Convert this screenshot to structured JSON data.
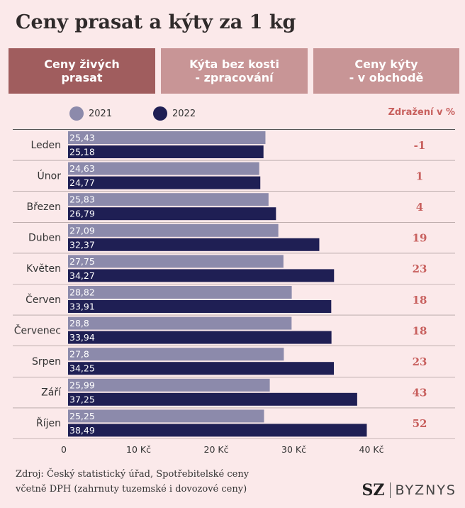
{
  "title": "Ceny prasat a kýty za 1 kg",
  "tabs": [
    {
      "label": "Ceny živých\nprasat",
      "active": true
    },
    {
      "label": "Kýta bez kosti\n- zpracování",
      "active": false
    },
    {
      "label": "Ceny kýty\n- v obchodě",
      "active": false
    }
  ],
  "colors": {
    "s2021": "#8c8aab",
    "s2022": "#1f1f54",
    "pct": "#c8605e",
    "active_tab": "#a05d5e",
    "tab": "#c89596",
    "background": "#fbe9ea"
  },
  "legend": {
    "s2021": "2021",
    "s2022": "2022",
    "pct_heading": "Zdražení v %"
  },
  "chart_data": {
    "type": "bar",
    "orientation": "horizontal",
    "categories": [
      "Leden",
      "Únor",
      "Březen",
      "Duben",
      "Květen",
      "Červen",
      "Červenec",
      "Srpen",
      "Září",
      "Říjen"
    ],
    "series": [
      {
        "name": "2021",
        "values": [
          25.43,
          24.63,
          25.83,
          27.09,
          27.75,
          28.82,
          28.8,
          27.8,
          25.99,
          25.25
        ],
        "labels": [
          "25,43",
          "24,63",
          "25,83",
          "27,09",
          "27,75",
          "28,82",
          "28,8",
          "27,8",
          "25,99",
          "25,25"
        ]
      },
      {
        "name": "2022",
        "values": [
          25.18,
          24.77,
          26.79,
          32.37,
          34.27,
          33.91,
          33.94,
          34.25,
          37.25,
          38.49
        ],
        "labels": [
          "25,18",
          "24,77",
          "26,79",
          "32,37",
          "34,27",
          "33,91",
          "33,94",
          "34,25",
          "37,25",
          "38,49"
        ]
      }
    ],
    "pct_change": [
      "-1",
      "1",
      "4",
      "19",
      "23",
      "18",
      "18",
      "23",
      "43",
      "52"
    ],
    "xticks": [
      0,
      10,
      20,
      30,
      40
    ],
    "xtick_labels": [
      "0",
      "10 Kč",
      "20 Kč",
      "30 Kč",
      "40 Kč"
    ],
    "xlim": [
      0,
      42
    ],
    "grid": false,
    "legend_position": "top"
  },
  "source": "Zdroj: Český statistický úřad, Spotřebitelské ceny\nvčetně DPH (zahrnuty tuzemské i dovozové ceny)",
  "logo": {
    "sz": "SZ",
    "byznys": "BYZNYS"
  }
}
